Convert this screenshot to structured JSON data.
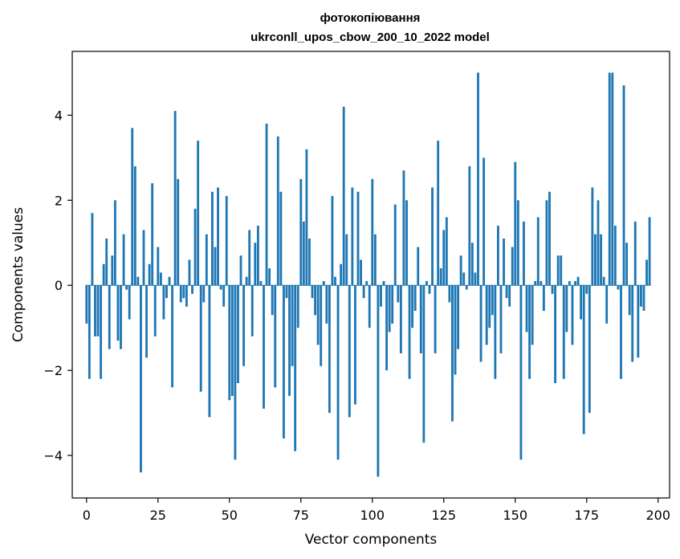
{
  "chart_data": {
    "type": "bar",
    "title": [
      "фотокопіювання",
      "ukrconll_upos_cbow_200_10_2022 model"
    ],
    "xlabel": "Vector components",
    "ylabel": "Components values",
    "xlim": [
      -5,
      204
    ],
    "ylim": [
      -5,
      5.5
    ],
    "xticks": [
      0,
      25,
      50,
      75,
      100,
      125,
      150,
      175,
      200
    ],
    "yticks": [
      -4,
      -2,
      0,
      2,
      4
    ],
    "ytick_labels": [
      "−4",
      "−2",
      "0",
      "2",
      "4"
    ],
    "grid": false,
    "bar_color": "#1f77b4",
    "values": [
      -0.9,
      -2.2,
      1.7,
      -1.2,
      -1.2,
      -2.2,
      0.5,
      1.1,
      -1.5,
      0.7,
      2.0,
      -1.3,
      -1.5,
      1.2,
      -0.1,
      -0.8,
      3.7,
      2.8,
      0.2,
      -4.4,
      1.3,
      -1.7,
      0.5,
      2.4,
      -1.2,
      0.9,
      0.3,
      -0.8,
      -0.3,
      0.2,
      -2.4,
      4.1,
      2.5,
      -0.4,
      -0.3,
      -0.5,
      0.6,
      -0.2,
      1.8,
      3.4,
      -2.5,
      -0.4,
      1.2,
      -3.1,
      2.2,
      0.9,
      2.3,
      -0.1,
      -0.5,
      2.1,
      -2.7,
      -2.6,
      -4.1,
      -2.3,
      0.7,
      -1.9,
      0.2,
      1.3,
      -1.2,
      1.0,
      1.4,
      0.1,
      -2.9,
      3.8,
      0.4,
      -0.7,
      -2.4,
      3.5,
      2.2,
      -3.6,
      -0.3,
      -2.6,
      -1.9,
      -3.9,
      -1.0,
      2.5,
      1.5,
      3.2,
      1.1,
      -0.3,
      -0.7,
      -1.4,
      -1.9,
      0.1,
      -0.9,
      -3.0,
      2.1,
      0.2,
      -4.1,
      0.5,
      4.2,
      1.2,
      -3.1,
      2.3,
      -2.8,
      2.2,
      0.6,
      -0.3,
      0.1,
      -1.0,
      2.5,
      1.2,
      -4.5,
      -0.5,
      0.1,
      -2.0,
      -1.1,
      -0.9,
      1.9,
      -0.4,
      -1.6,
      2.7,
      2.0,
      -2.2,
      -1.0,
      -0.6,
      0.9,
      -1.6,
      -3.7,
      0.1,
      -0.2,
      2.3,
      -1.6,
      3.4,
      0.4,
      1.3,
      1.6,
      -0.4,
      -3.2,
      -2.1,
      -1.5,
      0.7,
      0.3,
      -0.1,
      2.8,
      1.0,
      0.3,
      5.0,
      -1.8,
      3.0,
      -1.4,
      -1.0,
      -0.7,
      -2.2,
      1.4,
      -1.6,
      1.1,
      -0.3,
      -0.5,
      0.9,
      2.9,
      2.0,
      -4.1,
      1.5,
      -1.1,
      -2.2,
      -1.4,
      0.1,
      1.6,
      0.1,
      -0.6,
      2.0,
      2.2,
      -0.2,
      -2.3,
      0.7,
      0.7,
      -2.2,
      -1.1,
      0.1,
      -1.4,
      0.1,
      0.2,
      -0.8,
      -3.5,
      -0.2,
      -3.0,
      2.3,
      1.2,
      2.0,
      1.2,
      0.2,
      -0.9,
      5.0,
      5.0,
      1.4,
      -0.1,
      -2.2,
      4.7,
      1.0,
      -0.7,
      -1.8,
      1.5,
      -1.7,
      -0.5,
      -0.6,
      0.6,
      1.6
    ]
  }
}
